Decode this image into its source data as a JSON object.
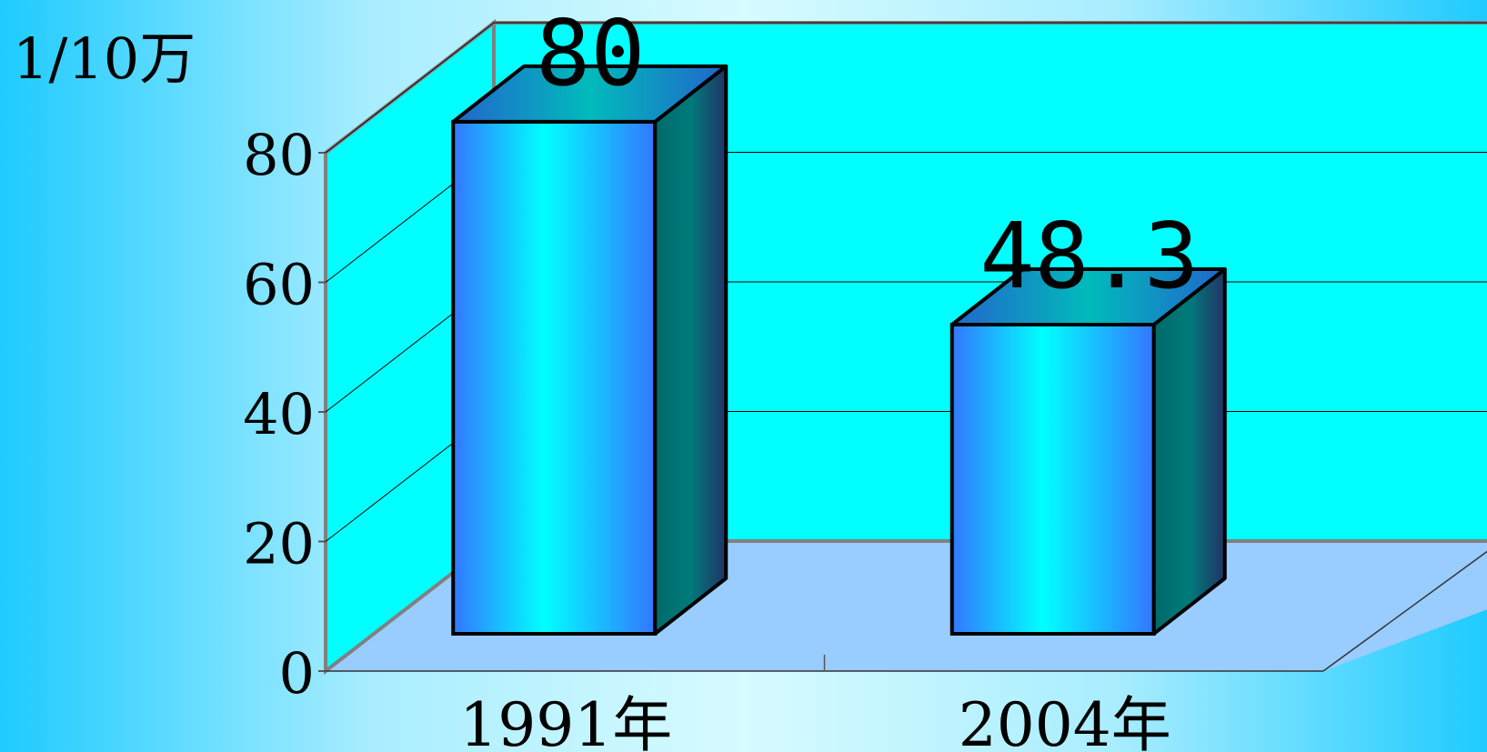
{
  "chart_data": {
    "type": "bar",
    "categories": [
      "1991年",
      "2004年"
    ],
    "values": [
      80,
      48.3
    ],
    "value_labels": [
      "80",
      "48.3"
    ],
    "title": "",
    "xlabel": "",
    "ylabel": "1/10万",
    "ylim": [
      0,
      80
    ],
    "yticks": [
      "0",
      "20",
      "40",
      "60",
      "80"
    ],
    "grid": true,
    "legend": "none",
    "colors": {
      "back_wall": "#00ffff",
      "side_wall": "#00ffff",
      "floor": "#99ccff",
      "bar_front_edge": "#3377ff",
      "bar_front_center": "#00ffff",
      "bar_side": "#007777",
      "bar_top": "#00bbbb"
    }
  }
}
